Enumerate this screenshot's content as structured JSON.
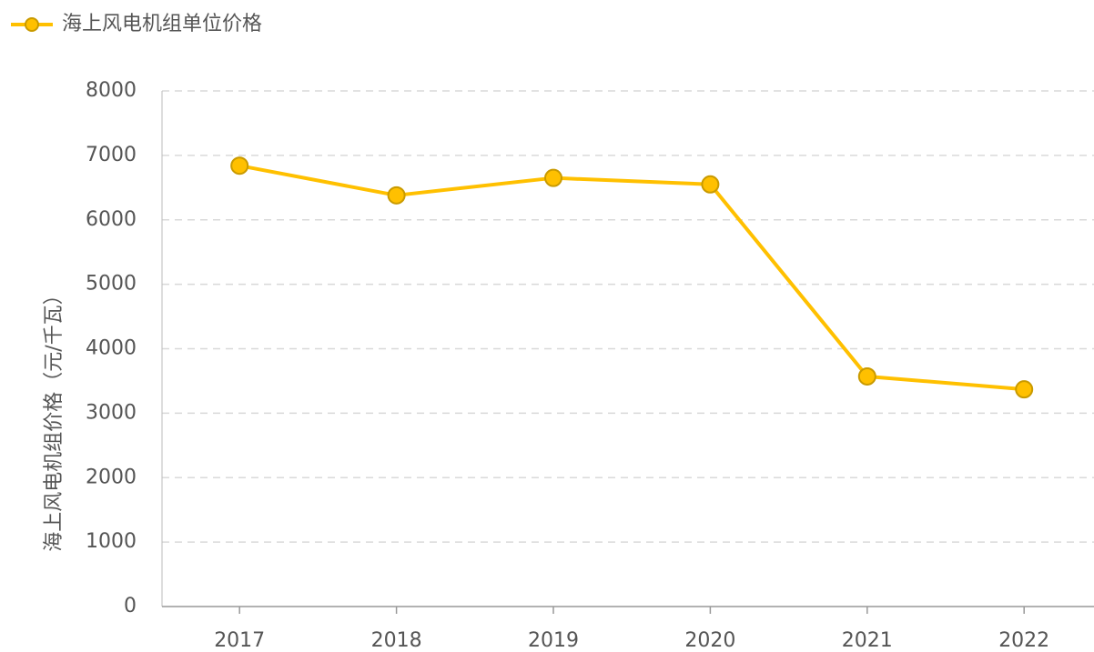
{
  "chart_data": {
    "type": "line",
    "y_label": "海上风电机组价格（元/千瓦）",
    "categories": [
      "2017",
      "2018",
      "2019",
      "2020",
      "2021",
      "2022"
    ],
    "series": [
      {
        "name": "海上风电机组单位价格",
        "color": "#FFC000",
        "values": [
          6840,
          6380,
          6650,
          6550,
          3570,
          3370
        ]
      }
    ],
    "ylim": [
      0,
      8000
    ],
    "yticks": [
      0,
      1000,
      2000,
      3000,
      4000,
      5000,
      6000,
      7000,
      8000
    ],
    "grid": true,
    "legend": "top-left"
  }
}
